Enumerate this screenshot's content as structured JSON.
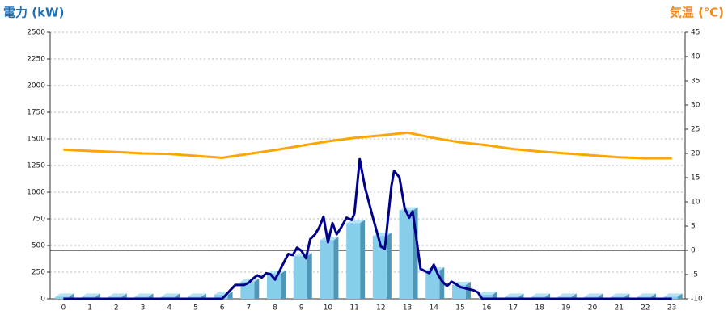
{
  "chart_data": {
    "type": "bar",
    "y_label": "電力 (kW)",
    "y2_label": "気温 (℃)",
    "categories": [
      "0",
      "1",
      "2",
      "3",
      "4",
      "5",
      "6",
      "7",
      "8",
      "9",
      "10",
      "11",
      "12",
      "13",
      "14",
      "15",
      "16",
      "17",
      "18",
      "19",
      "20",
      "21",
      "22",
      "23"
    ],
    "ylim": [
      0,
      2500
    ],
    "yticks": [
      0,
      250,
      500,
      750,
      1000,
      1250,
      1500,
      1750,
      2000,
      2250,
      2500
    ],
    "y2lim": [
      -10,
      45
    ],
    "y2ticks": [
      -10,
      -5,
      0,
      5,
      10,
      15,
      20,
      25,
      30,
      35,
      40,
      45
    ],
    "grid": true,
    "series": [
      {
        "type": "bar",
        "color": "#87ceeb",
        "values": [
          20,
          20,
          20,
          20,
          20,
          20,
          38,
          160,
          235,
          400,
          550,
          710,
          590,
          830,
          265,
          130,
          38,
          20,
          20,
          20,
          20,
          20,
          20,
          20
        ]
      },
      {
        "type": "line",
        "color": "#00008b",
        "x": [
          0,
          6,
          6.5,
          6.83,
          7.0,
          7.17,
          7.33,
          7.5,
          7.67,
          7.83,
          8.0,
          8.17,
          8.33,
          8.5,
          8.67,
          8.83,
          9.0,
          9.17,
          9.33,
          9.5,
          9.67,
          9.83,
          10.0,
          10.17,
          10.33,
          10.5,
          10.7,
          10.9,
          11.0,
          11.2,
          11.4,
          11.7,
          12.0,
          12.15,
          12.4,
          12.5,
          12.7,
          12.9,
          13.07,
          13.2,
          13.5,
          13.67,
          13.83,
          14.0,
          14.17,
          14.33,
          14.5,
          14.67,
          14.83,
          15.0,
          15.17,
          15.33,
          15.5,
          15.67,
          15.83,
          23
        ],
        "values": [
          0,
          0,
          130,
          130,
          150,
          190,
          220,
          200,
          240,
          230,
          180,
          260,
          340,
          420,
          410,
          480,
          450,
          380,
          560,
          600,
          670,
          770,
          530,
          710,
          605,
          670,
          760,
          740,
          800,
          1310,
          1045,
          760,
          490,
          470,
          1060,
          1200,
          1140,
          850,
          760,
          820,
          280,
          260,
          240,
          320,
          220,
          160,
          120,
          160,
          140,
          110,
          100,
          90,
          80,
          60,
          0,
          0
        ]
      },
      {
        "type": "line",
        "axis": "y2",
        "color": "#ffa500",
        "values": [
          20.8,
          20.5,
          20.3,
          20.0,
          19.9,
          19.5,
          19.1,
          19.9,
          20.7,
          21.6,
          22.5,
          23.2,
          23.7,
          24.3,
          23.2,
          22.3,
          21.7,
          20.9,
          20.4,
          20.0,
          19.6,
          19.2,
          19.0,
          19.0
        ]
      }
    ]
  }
}
